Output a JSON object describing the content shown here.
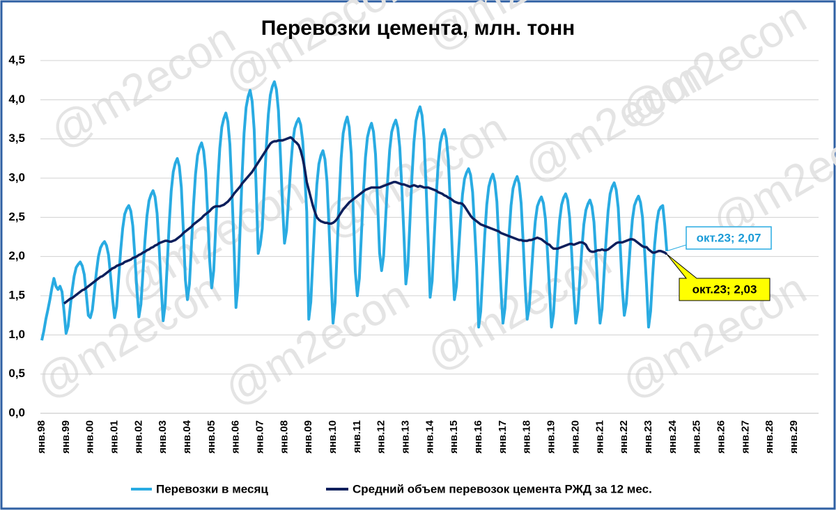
{
  "chart_data": {
    "type": "line",
    "title": "Перевозки цемента, млн. тонн",
    "watermark": "@m2econ",
    "categories": [
      "янв.98",
      null,
      null,
      null,
      null,
      null,
      null,
      null,
      null,
      null,
      null,
      null,
      "янв.99",
      null,
      null,
      null,
      null,
      null,
      null,
      null,
      null,
      null,
      null,
      null,
      "янв.00",
      null,
      null,
      null,
      null,
      null,
      null,
      null,
      null,
      null,
      null,
      null,
      "янв.01",
      null,
      null,
      null,
      null,
      null,
      null,
      null,
      null,
      null,
      null,
      null,
      "янв.02",
      null,
      null,
      null,
      null,
      null,
      null,
      null,
      null,
      null,
      null,
      null,
      "янв.03",
      null,
      null,
      null,
      null,
      null,
      null,
      null,
      null,
      null,
      null,
      null,
      "янв.04",
      null,
      null,
      null,
      null,
      null,
      null,
      null,
      null,
      null,
      null,
      null,
      "янв.05",
      null,
      null,
      null,
      null,
      null,
      null,
      null,
      null,
      null,
      null,
      null,
      "янв.06",
      null,
      null,
      null,
      null,
      null,
      null,
      null,
      null,
      null,
      null,
      null,
      "янв.07",
      null,
      null,
      null,
      null,
      null,
      null,
      null,
      null,
      null,
      null,
      null,
      "янв.08",
      null,
      null,
      null,
      null,
      null,
      null,
      null,
      null,
      null,
      null,
      null,
      "янв.09",
      null,
      null,
      null,
      null,
      null,
      null,
      null,
      null,
      null,
      null,
      null,
      "янв.10",
      null,
      null,
      null,
      null,
      null,
      null,
      null,
      null,
      null,
      null,
      null,
      "янв.11",
      null,
      null,
      null,
      null,
      null,
      null,
      null,
      null,
      null,
      null,
      null,
      "янв.12",
      null,
      null,
      null,
      null,
      null,
      null,
      null,
      null,
      null,
      null,
      null,
      "янв.13",
      null,
      null,
      null,
      null,
      null,
      null,
      null,
      null,
      null,
      null,
      null,
      "янв.14",
      null,
      null,
      null,
      null,
      null,
      null,
      null,
      null,
      null,
      null,
      null,
      "янв.15",
      null,
      null,
      null,
      null,
      null,
      null,
      null,
      null,
      null,
      null,
      null,
      "янв.16",
      null,
      null,
      null,
      null,
      null,
      null,
      null,
      null,
      null,
      null,
      null,
      "янв.17",
      null,
      null,
      null,
      null,
      null,
      null,
      null,
      null,
      null,
      null,
      null,
      "янв.18",
      null,
      null,
      null,
      null,
      null,
      null,
      null,
      null,
      null,
      null,
      null,
      "янв.19",
      null,
      null,
      null,
      null,
      null,
      null,
      null,
      null,
      null,
      null,
      null,
      "янв.20",
      null,
      null,
      null,
      null,
      null,
      null,
      null,
      null,
      null,
      null,
      null,
      "янв.21",
      null,
      null,
      null,
      null,
      null,
      null,
      null,
      null,
      null,
      null,
      null,
      "янв.22",
      null,
      null,
      null,
      null,
      null,
      null,
      null,
      null,
      null,
      null,
      null,
      "янв.23",
      null,
      null,
      null,
      null,
      null,
      null,
      null,
      null,
      null,
      null,
      null,
      "янв.24",
      null,
      null,
      null,
      null,
      null,
      null,
      null,
      null,
      null,
      null,
      null,
      "янв.25",
      null,
      null,
      null,
      null,
      null,
      null,
      null,
      null,
      null,
      null,
      null,
      "янв.26",
      null,
      null,
      null,
      null,
      null,
      null,
      null,
      null,
      null,
      null,
      null,
      "янв.27",
      null,
      null,
      null,
      null,
      null,
      null,
      null,
      null,
      null,
      null,
      null,
      "янв.28",
      null,
      null,
      null,
      null,
      null,
      null,
      null,
      null,
      null,
      null,
      null,
      "янв.29",
      null,
      null,
      null,
      null,
      null,
      null,
      null,
      null,
      null,
      null,
      null
    ],
    "series": [
      {
        "name": "Перевозки в месяц",
        "color": "#29abe2",
        "values": [
          0.93,
          1.05,
          1.2,
          1.32,
          1.45,
          1.6,
          1.72,
          1.62,
          1.58,
          1.62,
          1.55,
          1.3,
          1.02,
          1.11,
          1.34,
          1.57,
          1.75,
          1.86,
          1.9,
          1.93,
          1.88,
          1.77,
          1.52,
          1.25,
          1.22,
          1.32,
          1.56,
          1.8,
          2.0,
          2.11,
          2.16,
          2.19,
          2.14,
          2.02,
          1.75,
          1.46,
          1.22,
          1.36,
          1.72,
          2.08,
          2.36,
          2.54,
          2.61,
          2.65,
          2.58,
          2.39,
          2.01,
          1.58,
          1.23,
          1.39,
          1.79,
          2.2,
          2.52,
          2.71,
          2.79,
          2.84,
          2.76,
          2.55,
          2.12,
          1.63,
          1.18,
          1.39,
          1.9,
          2.42,
          2.84,
          3.08,
          3.19,
          3.25,
          3.15,
          2.88,
          2.32,
          1.7,
          1.45,
          1.65,
          2.15,
          2.65,
          3.05,
          3.29,
          3.39,
          3.45,
          3.35,
          3.09,
          2.55,
          1.95,
          1.6,
          1.82,
          2.38,
          2.94,
          3.38,
          3.65,
          3.76,
          3.83,
          3.72,
          3.43,
          2.83,
          2.16,
          1.35,
          1.63,
          2.32,
          3.01,
          3.57,
          3.9,
          4.04,
          4.12,
          3.98,
          3.62,
          2.87,
          2.04,
          2.15,
          2.36,
          2.88,
          3.4,
          3.81,
          4.06,
          4.17,
          4.23,
          4.13,
          3.86,
          3.29,
          2.67,
          2.17,
          2.33,
          2.73,
          3.12,
          3.44,
          3.63,
          3.71,
          3.76,
          3.68,
          3.47,
          3.04,
          2.57,
          1.2,
          1.42,
          1.95,
          2.49,
          2.92,
          3.18,
          3.29,
          3.35,
          3.24,
          2.96,
          2.38,
          1.74,
          1.15,
          1.41,
          2.07,
          2.73,
          3.25,
          3.57,
          3.7,
          3.78,
          3.65,
          3.31,
          2.6,
          1.81,
          1.5,
          1.72,
          2.27,
          2.82,
          3.26,
          3.52,
          3.63,
          3.7,
          3.59,
          3.3,
          2.71,
          2.05,
          1.82,
          2.01,
          2.49,
          2.97,
          3.36,
          3.59,
          3.68,
          3.74,
          3.64,
          3.39,
          2.88,
          2.3,
          1.65,
          1.88,
          2.44,
          3.01,
          3.46,
          3.73,
          3.84,
          3.91,
          3.8,
          3.5,
          2.89,
          2.22,
          1.48,
          1.69,
          2.23,
          2.76,
          3.19,
          3.45,
          3.56,
          3.62,
          3.51,
          3.23,
          2.66,
          2.02,
          1.45,
          1.62,
          2.03,
          2.45,
          2.79,
          2.99,
          3.07,
          3.12,
          3.04,
          2.82,
          2.37,
          1.87,
          1.1,
          1.3,
          1.78,
          2.27,
          2.66,
          2.89,
          2.99,
          3.05,
          2.95,
          2.7,
          2.17,
          1.59,
          1.15,
          1.34,
          1.8,
          2.27,
          2.65,
          2.87,
          2.96,
          3.02,
          2.93,
          2.68,
          2.18,
          1.62,
          1.2,
          1.36,
          1.75,
          2.14,
          2.45,
          2.64,
          2.71,
          2.76,
          2.68,
          2.48,
          2.06,
          1.59,
          1.1,
          1.27,
          1.7,
          2.12,
          2.46,
          2.66,
          2.75,
          2.8,
          2.72,
          2.49,
          2.04,
          1.53,
          1.15,
          1.31,
          1.7,
          2.09,
          2.41,
          2.59,
          2.67,
          2.72,
          2.64,
          2.44,
          2.01,
          1.54,
          1.15,
          1.33,
          1.78,
          2.22,
          2.58,
          2.8,
          2.89,
          2.94,
          2.85,
          2.62,
          2.13,
          1.6,
          1.25,
          1.4,
          1.78,
          2.16,
          2.47,
          2.65,
          2.72,
          2.77,
          2.69,
          2.5,
          2.09,
          1.63,
          1.1,
          1.3,
          1.75,
          2.15,
          2.42,
          2.58,
          2.63,
          2.65,
          2.4,
          2.07,
          null,
          null,
          null,
          null,
          null,
          null,
          null,
          null,
          null,
          null,
          null,
          null,
          null,
          null,
          null,
          null,
          null,
          null,
          null,
          null,
          null,
          null,
          null,
          null,
          null,
          null,
          null,
          null,
          null,
          null,
          null,
          null,
          null,
          null,
          null,
          null,
          null,
          null,
          null,
          null,
          null,
          null,
          null,
          null,
          null,
          null,
          null,
          null,
          null,
          null,
          null,
          null,
          null,
          null,
          null,
          null,
          null,
          null,
          null,
          null,
          null,
          null,
          null,
          null,
          null,
          null,
          null,
          null,
          null,
          null,
          null,
          null,
          null,
          null
        ]
      },
      {
        "name": "Средний объем перевозок цемента РЖД за 12 мес.",
        "color": "#0d1f5c",
        "values": [
          null,
          null,
          null,
          null,
          null,
          null,
          null,
          null,
          null,
          null,
          null,
          1.4,
          1.42,
          1.44,
          1.46,
          1.47,
          1.49,
          1.51,
          1.53,
          1.55,
          1.57,
          1.58,
          1.6,
          1.62,
          1.64,
          1.66,
          1.68,
          1.7,
          1.72,
          1.74,
          1.75,
          1.77,
          1.79,
          1.81,
          1.83,
          1.85,
          1.86,
          1.88,
          1.89,
          1.9,
          1.91,
          1.93,
          1.94,
          1.95,
          1.96,
          1.98,
          1.99,
          2.0,
          2.02,
          2.03,
          2.05,
          2.06,
          2.08,
          2.09,
          2.11,
          2.12,
          2.14,
          2.15,
          2.17,
          2.18,
          2.19,
          2.2,
          2.2,
          2.19,
          2.19,
          2.2,
          2.21,
          2.23,
          2.25,
          2.27,
          2.3,
          2.32,
          2.34,
          2.36,
          2.38,
          2.41,
          2.43,
          2.45,
          2.47,
          2.49,
          2.52,
          2.54,
          2.56,
          2.58,
          2.61,
          2.63,
          2.64,
          2.64,
          2.64,
          2.65,
          2.66,
          2.68,
          2.7,
          2.73,
          2.76,
          2.8,
          2.83,
          2.86,
          2.89,
          2.93,
          2.96,
          2.99,
          3.02,
          3.05,
          3.08,
          3.12,
          3.16,
          3.2,
          3.24,
          3.28,
          3.32,
          3.36,
          3.4,
          3.44,
          3.46,
          3.47,
          3.47,
          3.48,
          3.48,
          3.48,
          3.49,
          3.5,
          3.51,
          3.52,
          3.5,
          3.47,
          3.45,
          3.42,
          3.35,
          3.25,
          3.12,
          2.95,
          2.85,
          2.75,
          2.65,
          2.57,
          2.5,
          2.47,
          2.45,
          2.44,
          2.43,
          2.43,
          2.42,
          2.42,
          2.43,
          2.45,
          2.48,
          2.52,
          2.56,
          2.6,
          2.63,
          2.66,
          2.69,
          2.71,
          2.73,
          2.75,
          2.77,
          2.79,
          2.81,
          2.83,
          2.85,
          2.86,
          2.87,
          2.88,
          2.88,
          2.88,
          2.88,
          2.88,
          2.89,
          2.9,
          2.91,
          2.92,
          2.93,
          2.94,
          2.95,
          2.95,
          2.94,
          2.93,
          2.92,
          2.92,
          2.91,
          2.9,
          2.89,
          2.9,
          2.91,
          2.9,
          2.89,
          2.9,
          2.89,
          2.88,
          2.88,
          2.88,
          2.87,
          2.86,
          2.85,
          2.84,
          2.82,
          2.81,
          2.8,
          2.78,
          2.77,
          2.75,
          2.74,
          2.72,
          2.7,
          2.69,
          2.68,
          2.68,
          2.67,
          2.64,
          2.6,
          2.56,
          2.52,
          2.49,
          2.47,
          2.45,
          2.43,
          2.41,
          2.4,
          2.39,
          2.38,
          2.37,
          2.36,
          2.35,
          2.34,
          2.33,
          2.32,
          2.3,
          2.29,
          2.28,
          2.27,
          2.26,
          2.25,
          2.24,
          2.23,
          2.22,
          2.21,
          2.21,
          2.2,
          2.2,
          2.2,
          2.21,
          2.21,
          2.22,
          2.23,
          2.24,
          2.23,
          2.22,
          2.2,
          2.18,
          2.16,
          2.15,
          2.12,
          2.1,
          2.1,
          2.1,
          2.11,
          2.12,
          2.13,
          2.14,
          2.15,
          2.16,
          2.16,
          2.15,
          2.16,
          2.17,
          2.18,
          2.18,
          2.17,
          2.15,
          2.1,
          2.07,
          2.06,
          2.06,
          2.07,
          2.08,
          2.08,
          2.09,
          2.08,
          2.08,
          2.09,
          2.11,
          2.13,
          2.15,
          2.17,
          2.18,
          2.18,
          2.18,
          2.19,
          2.2,
          2.21,
          2.22,
          2.22,
          2.21,
          2.19,
          2.17,
          2.15,
          2.13,
          2.12,
          2.12,
          2.09,
          2.07,
          2.05,
          2.05,
          2.06,
          2.07,
          2.07,
          2.06,
          2.05,
          2.03,
          null,
          null,
          null,
          null,
          null,
          null,
          null,
          null,
          null,
          null,
          null,
          null,
          null,
          null,
          null,
          null,
          null,
          null,
          null,
          null,
          null,
          null,
          null,
          null,
          null,
          null,
          null,
          null,
          null,
          null,
          null,
          null,
          null,
          null,
          null,
          null,
          null,
          null,
          null,
          null,
          null,
          null,
          null,
          null,
          null,
          null,
          null,
          null,
          null,
          null,
          null,
          null,
          null,
          null,
          null,
          null,
          null,
          null,
          null,
          null,
          null,
          null,
          null,
          null,
          null,
          null,
          null,
          null,
          null,
          null,
          null,
          null,
          null,
          null
        ]
      }
    ],
    "annotations": [
      "окт.23; 2,07",
      "окт.23; 2,03"
    ],
    "ylim": [
      0,
      4.5
    ],
    "yticks": [
      {
        "value": 0,
        "label": "0,0"
      },
      {
        "value": 0.5,
        "label": "0,5"
      },
      {
        "value": 1,
        "label": "1,0"
      },
      {
        "value": 1.5,
        "label": "1,5"
      },
      {
        "value": 2,
        "label": "2,0"
      },
      {
        "value": 2.5,
        "label": "2,5"
      },
      {
        "value": 3,
        "label": "3,0"
      },
      {
        "value": 3.5,
        "label": "3,5"
      },
      {
        "value": 4,
        "label": "4,0"
      },
      {
        "value": 4.5,
        "label": "4,5"
      }
    ],
    "grid": true
  }
}
